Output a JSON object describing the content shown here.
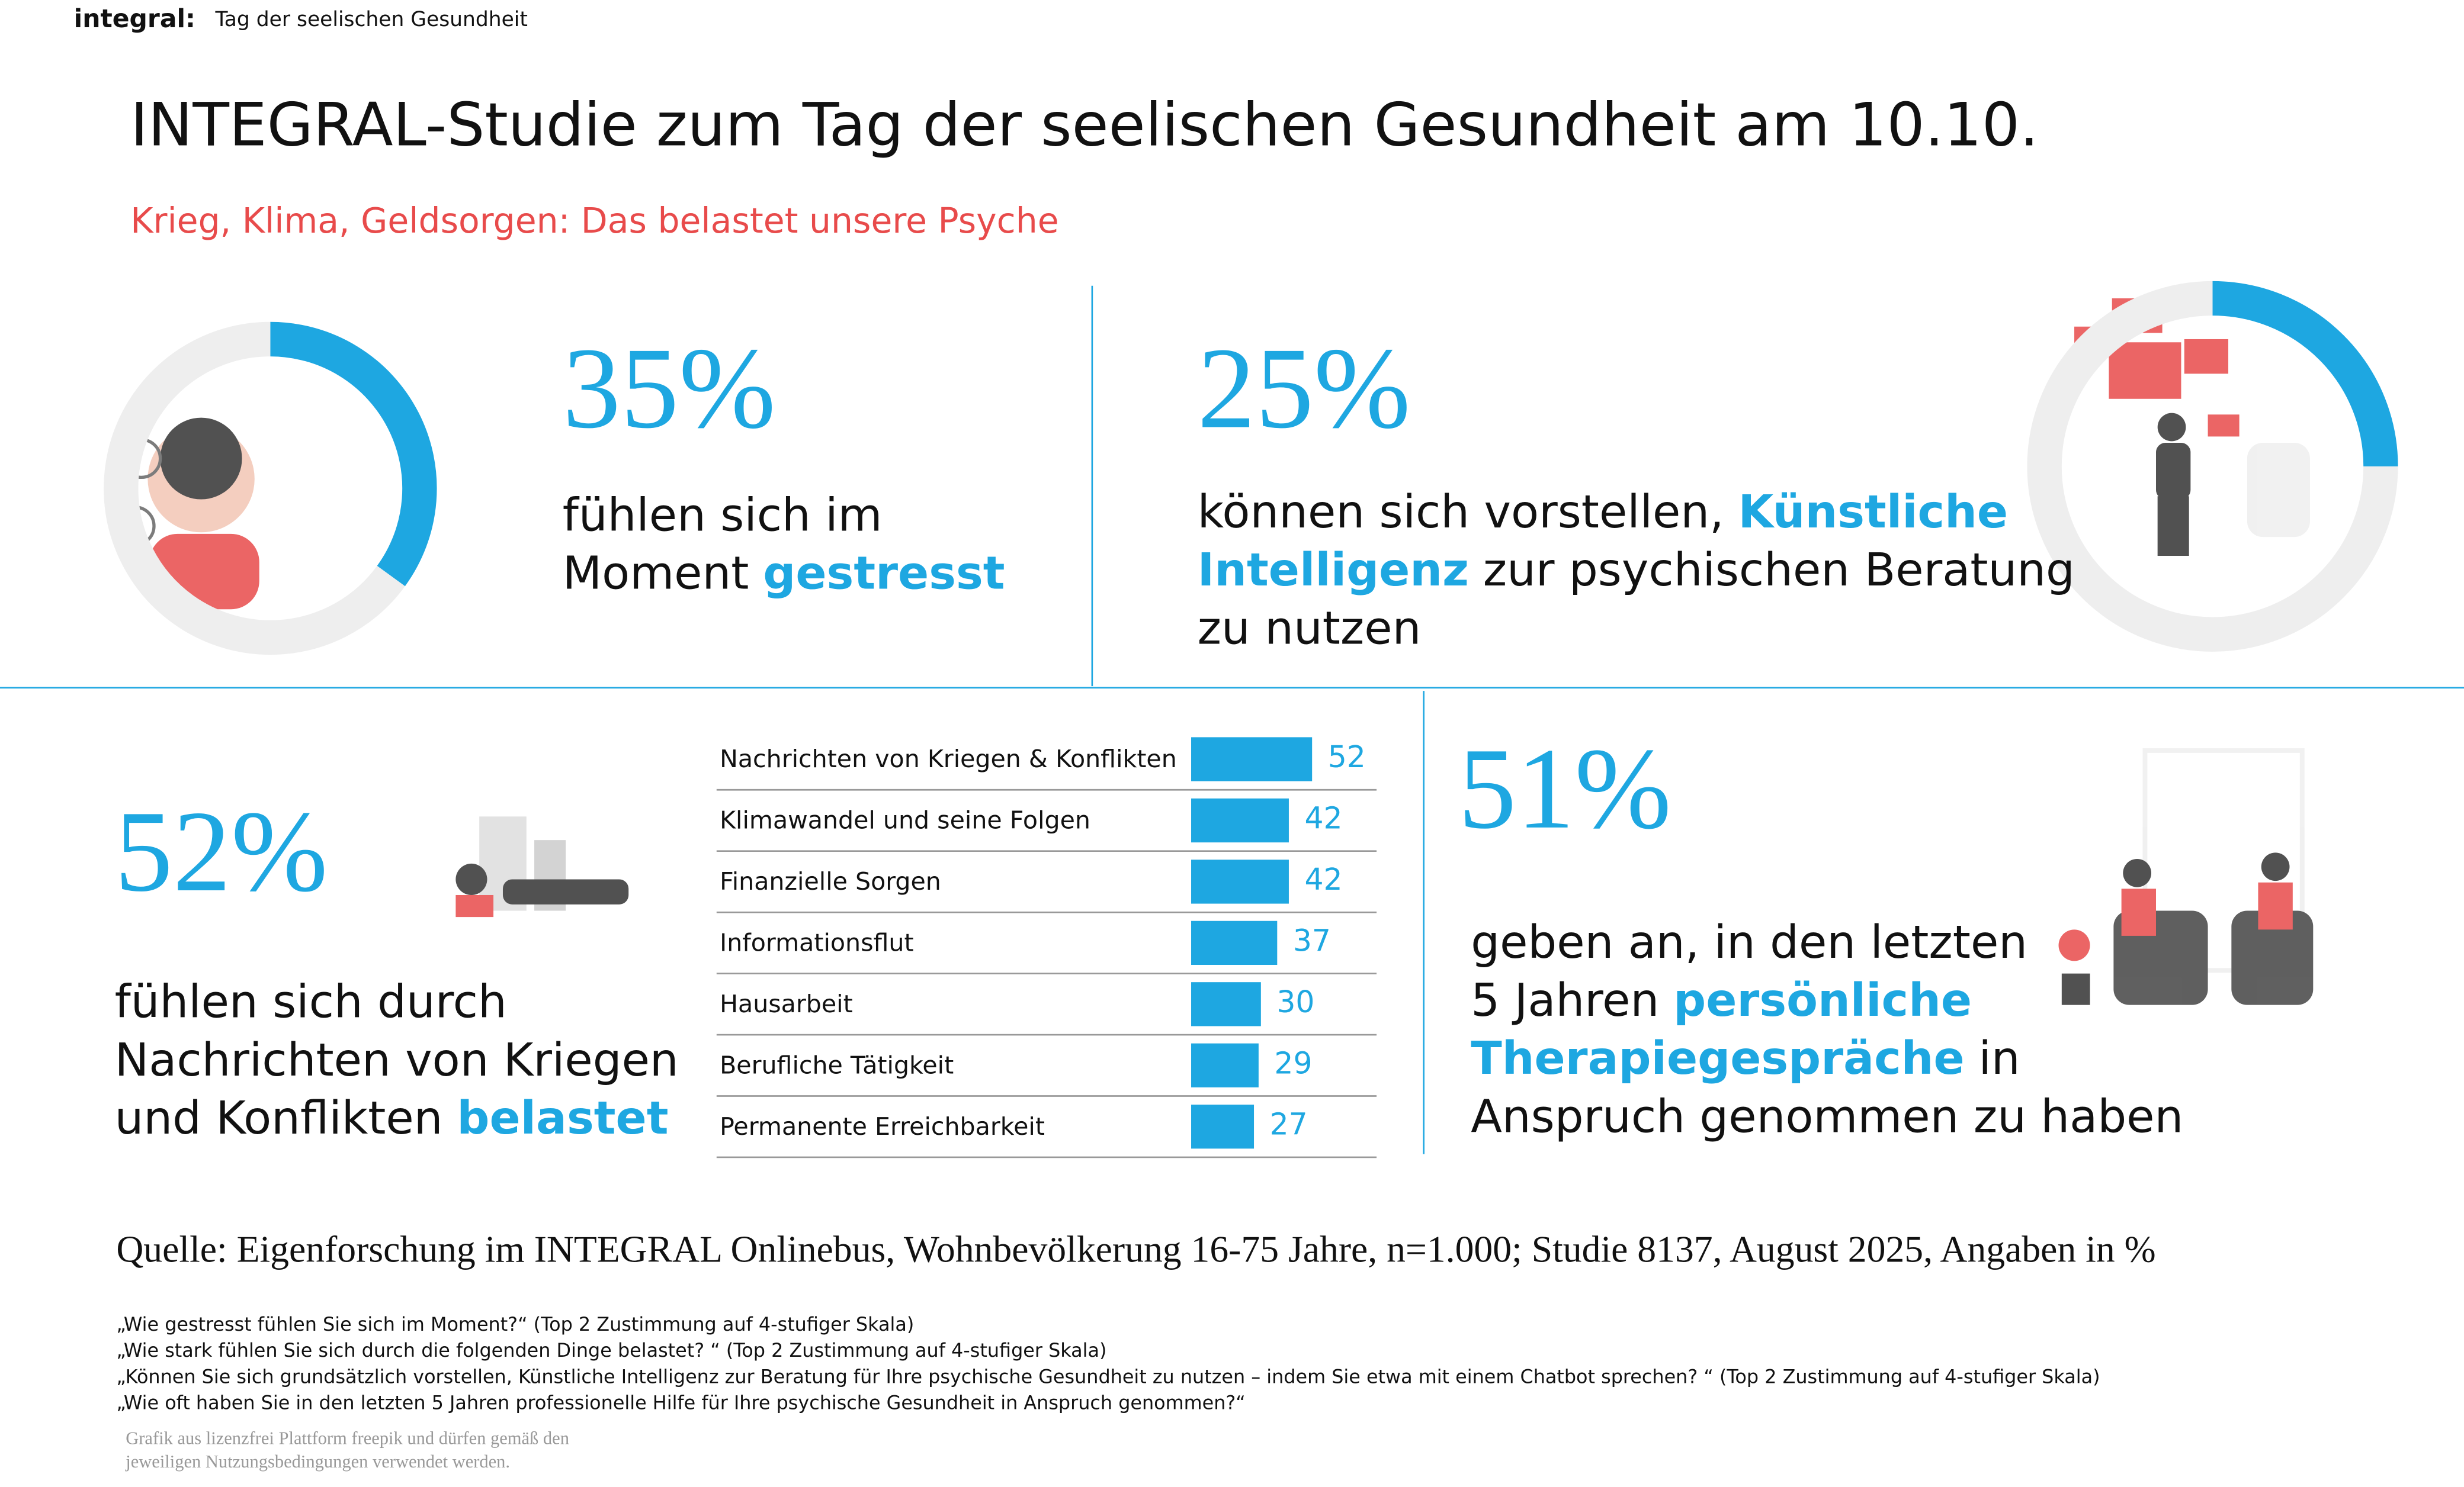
{
  "header": {
    "logo": "integral:",
    "tag": "Tag der seelischen Gesundheit"
  },
  "title": "INTEGRAL-Studie zum Tag der seelischen Gesundheit am 10.10.",
  "subtitle": "Krieg, Klima, Geldsorgen: Das belastet unsere Psyche",
  "emphasis_color": "#1ea7e1",
  "chart_data": [
    {
      "type": "donut",
      "values": [
        35,
        65
      ],
      "value_labels": [
        "35%"
      ],
      "colors": [
        "#1ea7e1",
        "#eeeeee"
      ]
    },
    {
      "type": "donut",
      "values": [
        25,
        75
      ],
      "value_labels": [
        "25%"
      ],
      "colors": [
        "#1ea7e1",
        "#eeeeee"
      ]
    },
    {
      "type": "bar",
      "orientation": "horizontal",
      "color": "#1ea7e1",
      "xlim": [
        0,
        100
      ],
      "categories": [
        "Nachrichten von Kriegen & Konflikten",
        "Klimawandel und seine Folgen",
        "Finanzielle Sorgen",
        "Informationsflut",
        "Hausarbeit",
        "Berufliche Tätigkeit",
        "Permanente Erreichbarkeit"
      ],
      "values": [
        52,
        42,
        42,
        37,
        30,
        29,
        27
      ]
    }
  ],
  "panels": [
    {
      "lines": [
        [
          {
            "text": "fühlen sich im"
          }
        ],
        [
          {
            "text": "Moment"
          },
          {
            "text": "gestresst",
            "emphasis": true
          }
        ]
      ]
    },
    {
      "lines": [
        [
          {
            "text": "können sich vorstellen,"
          },
          {
            "text": "Künstliche",
            "emphasis": true
          }
        ],
        [
          {
            "text": "Intelligenz",
            "emphasis": true
          },
          {
            "text": "zur psychischen Beratung"
          }
        ],
        [
          {
            "text": "zu nutzen"
          }
        ]
      ]
    },
    {
      "figure": "52%",
      "lines": [
        [
          {
            "text": "fühlen sich durch"
          }
        ],
        [
          {
            "text": "Nachrichten von Kriegen"
          }
        ],
        [
          {
            "text": "und Konflikten"
          },
          {
            "text": "belastet",
            "emphasis": true
          }
        ]
      ]
    },
    {
      "figure": "51%",
      "lines": [
        [
          {
            "text": "geben an, in den letzten"
          }
        ],
        [
          {
            "text": "5 Jahren"
          },
          {
            "text": "persönliche",
            "emphasis": true
          }
        ],
        [
          {
            "text": "Therapiegespräche",
            "emphasis": true
          },
          {
            "text": "in"
          }
        ],
        [
          {
            "text": "Anspruch genommen zu haben"
          }
        ]
      ]
    }
  ],
  "source": "Quelle: Eigenforschung im INTEGRAL Onlinebus, Wohnbevölkerung 16-75 Jahre, n=1.000; Studie 8137, August 2025, Angaben in %",
  "footnotes": [
    "„Wie gestresst fühlen Sie sich im Moment?“ (Top 2 Zustimmung auf 4-stufiger Skala)",
    "„Wie stark fühlen Sie sich durch die folgenden Dinge belastet? “ (Top 2 Zustimmung auf 4-stufiger Skala)",
    "„Können Sie sich grundsätzlich vorstellen, Künstliche Intelligenz zur Beratung für Ihre psychische Gesundheit zu nutzen – indem Sie etwa mit einem Chatbot sprechen? “ (Top 2 Zustimmung auf 4-stufiger Skala)",
    "„Wie oft haben Sie in den letzten 5 Jahren professionelle Hilfe für Ihre psychische Gesundheit in Anspruch genommen?“"
  ],
  "credits": [
    "Grafik aus lizenzfrei Plattform freepik und dürfen gemäß den",
    "jeweiligen Nutzungsbedingungen verwendet werden."
  ]
}
